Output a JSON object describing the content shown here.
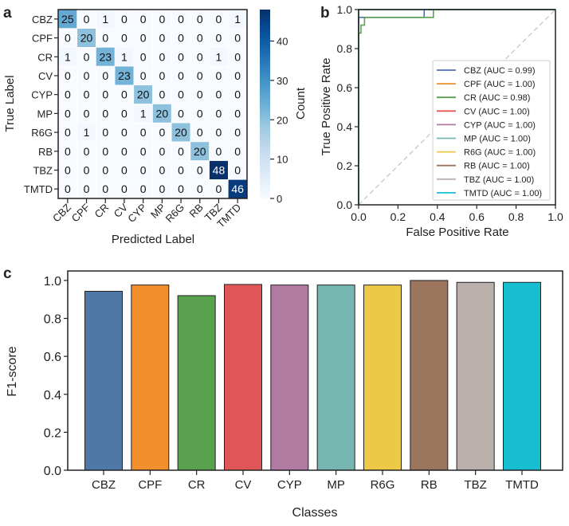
{
  "panel_labels": [
    "a",
    "b",
    "c"
  ],
  "chart_data": [
    {
      "type": "heatmap",
      "panel": "a",
      "xlabel": "Predicted Label",
      "ylabel": "True Label",
      "classes": [
        "CBZ",
        "CPF",
        "CR",
        "CV",
        "CYP",
        "MP",
        "R6G",
        "RB",
        "TBZ",
        "TMTD"
      ],
      "matrix": [
        [
          25,
          0,
          1,
          0,
          0,
          0,
          0,
          0,
          0,
          1
        ],
        [
          0,
          20,
          0,
          0,
          0,
          0,
          0,
          0,
          0,
          0
        ],
        [
          1,
          0,
          23,
          1,
          0,
          0,
          0,
          0,
          1,
          0
        ],
        [
          0,
          0,
          0,
          23,
          0,
          0,
          0,
          0,
          0,
          0
        ],
        [
          0,
          0,
          0,
          0,
          20,
          0,
          0,
          0,
          0,
          0
        ],
        [
          0,
          0,
          0,
          0,
          1,
          20,
          0,
          0,
          0,
          0
        ],
        [
          0,
          1,
          0,
          0,
          0,
          0,
          20,
          0,
          0,
          0
        ],
        [
          0,
          0,
          0,
          0,
          0,
          0,
          0,
          20,
          0,
          0
        ],
        [
          0,
          0,
          0,
          0,
          0,
          0,
          0,
          0,
          48,
          0
        ],
        [
          0,
          0,
          0,
          0,
          0,
          0,
          0,
          0,
          0,
          46
        ]
      ],
      "colorbar": {
        "label": "Count",
        "range": [
          0,
          48
        ],
        "ticks": [
          0,
          10,
          20,
          30,
          40
        ]
      },
      "colormap": [
        "#f7fbff",
        "#deebf7",
        "#c6dbef",
        "#9ecae1",
        "#6baed6",
        "#4292c6",
        "#2171b5",
        "#08519c",
        "#08306b"
      ]
    },
    {
      "type": "line",
      "panel": "b",
      "xlabel": "False Positive Rate",
      "ylabel": "True Positive Rate",
      "xlim": [
        0,
        1
      ],
      "ylim": [
        0,
        1
      ],
      "xticks": [
        "0.0",
        "0.2",
        "0.4",
        "0.6",
        "0.8",
        "1.0"
      ],
      "yticks": [
        "0.0",
        "0.2",
        "0.4",
        "0.6",
        "0.8",
        "1.0"
      ],
      "legend_position": "lower-right",
      "diagonal_color": "#cccccc",
      "series": [
        {
          "name": "CBZ (AUC = 0.99)",
          "color": "#4c72b0",
          "points": [
            [
              0,
              0
            ],
            [
              0,
              0.96
            ],
            [
              0.333,
              0.96
            ],
            [
              0.333,
              1
            ],
            [
              1,
              1
            ]
          ]
        },
        {
          "name": "CPF (AUC = 1.00)",
          "color": "#f28e2b",
          "points": [
            [
              0,
              0
            ],
            [
              0,
              1
            ],
            [
              1,
              1
            ]
          ]
        },
        {
          "name": "CR (AUC = 0.98)",
          "color": "#59a14f",
          "points": [
            [
              0,
              0
            ],
            [
              0,
              0.88
            ],
            [
              0.012,
              0.88
            ],
            [
              0.012,
              0.92
            ],
            [
              0.03,
              0.92
            ],
            [
              0.03,
              0.96
            ],
            [
              0.38,
              0.96
            ],
            [
              0.38,
              1
            ],
            [
              1,
              1
            ]
          ]
        },
        {
          "name": "CV (AUC = 1.00)",
          "color": "#e15759",
          "points": [
            [
              0,
              0
            ],
            [
              0,
              1
            ],
            [
              1,
              1
            ]
          ]
        },
        {
          "name": "CYP (AUC = 1.00)",
          "color": "#b07aa1",
          "points": [
            [
              0,
              0
            ],
            [
              0,
              1
            ],
            [
              1,
              1
            ]
          ]
        },
        {
          "name": "MP (AUC = 1.00)",
          "color": "#76b7b2",
          "points": [
            [
              0,
              0
            ],
            [
              0,
              1
            ],
            [
              1,
              1
            ]
          ]
        },
        {
          "name": "R6G (AUC = 1.00)",
          "color": "#edc948",
          "points": [
            [
              0,
              0
            ],
            [
              0,
              1
            ],
            [
              1,
              1
            ]
          ]
        },
        {
          "name": "RB (AUC = 1.00)",
          "color": "#9c755f",
          "points": [
            [
              0,
              0
            ],
            [
              0,
              1
            ],
            [
              1,
              1
            ]
          ]
        },
        {
          "name": "TBZ (AUC = 1.00)",
          "color": "#bab0ac",
          "points": [
            [
              0,
              0
            ],
            [
              0,
              1
            ],
            [
              1,
              1
            ]
          ]
        },
        {
          "name": "TMTD (AUC = 1.00)",
          "color": "#17becf",
          "points": [
            [
              0,
              0
            ],
            [
              0,
              1
            ],
            [
              1,
              1
            ]
          ]
        }
      ]
    },
    {
      "type": "bar",
      "panel": "c",
      "xlabel": "Classes",
      "ylabel": "F1-score",
      "ylim": [
        0,
        1.05
      ],
      "yticks": [
        "0.0",
        "0.2",
        "0.4",
        "0.6",
        "0.8",
        "1.0"
      ],
      "categories": [
        "CBZ",
        "CPF",
        "CR",
        "CV",
        "CYP",
        "MP",
        "R6G",
        "RB",
        "TBZ",
        "TMTD"
      ],
      "values": [
        0.943,
        0.976,
        0.92,
        0.979,
        0.976,
        0.976,
        0.976,
        1.0,
        0.99,
        0.99
      ],
      "colors": [
        "#4e79a7",
        "#f28e2b",
        "#59a14f",
        "#e15759",
        "#b07aa1",
        "#76b7b2",
        "#edc948",
        "#9c755f",
        "#bab0ac",
        "#17becf"
      ]
    }
  ]
}
